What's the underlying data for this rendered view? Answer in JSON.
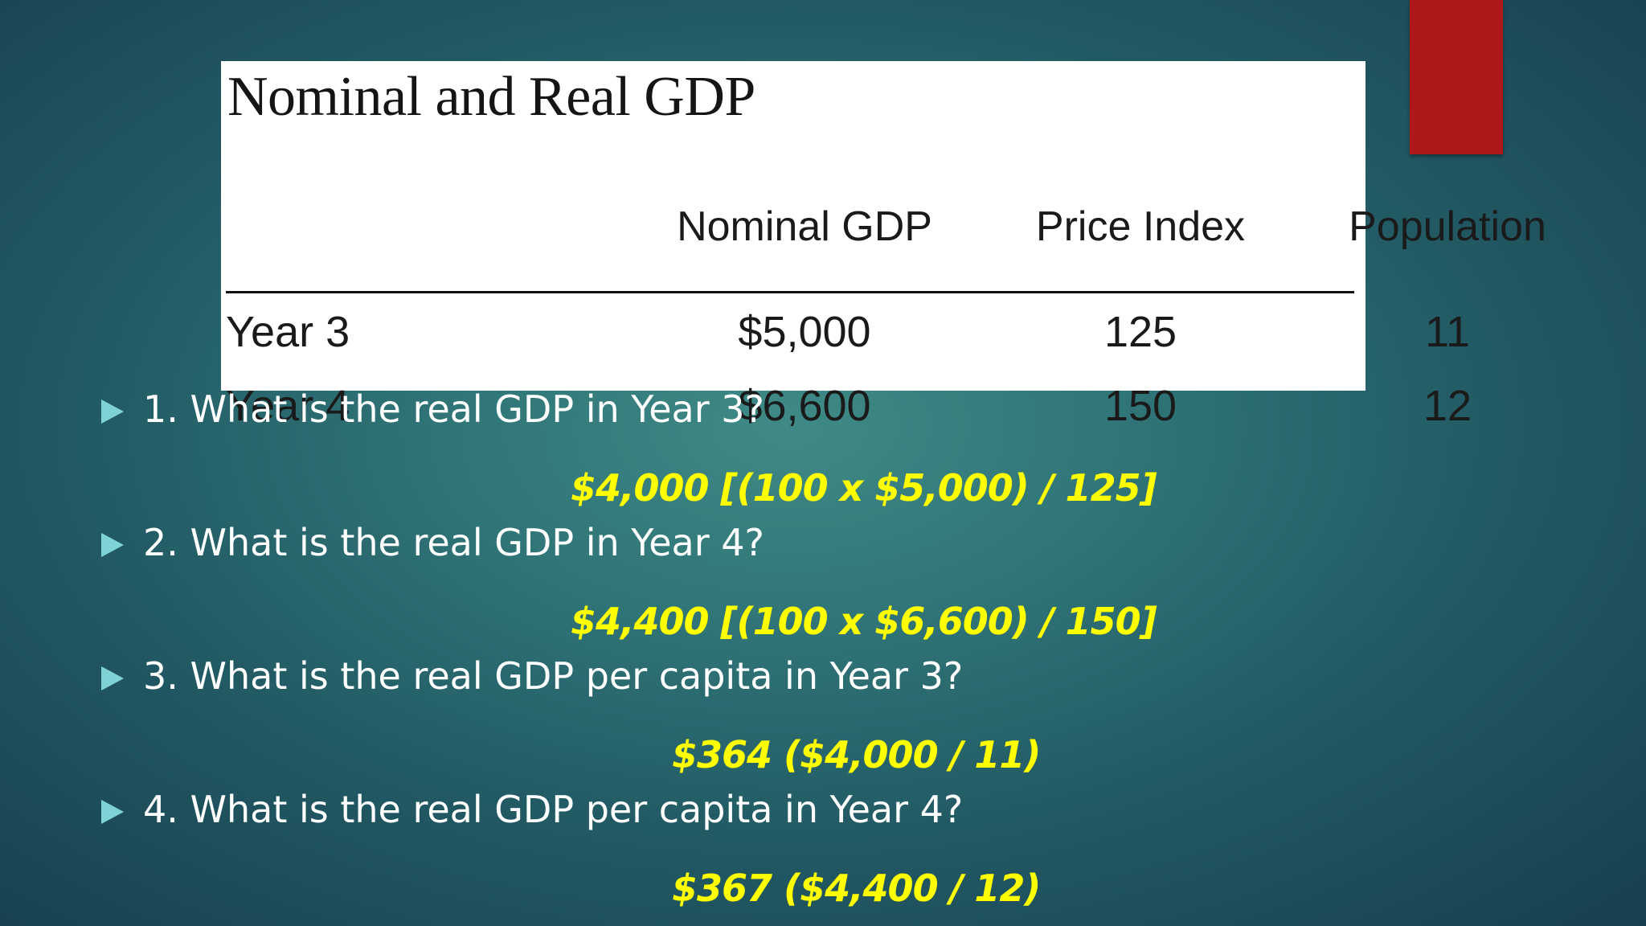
{
  "table": {
    "title": "Nominal and Real GDP",
    "columns": [
      "Nominal GDP",
      "Price Index",
      "Population"
    ],
    "rows": [
      {
        "label": "Year 3",
        "nominal_gdp": "$5,000",
        "price_index": "125",
        "population": "11"
      },
      {
        "label": "Year 4",
        "nominal_gdp": "$6,600",
        "price_index": "150",
        "population": "12"
      }
    ]
  },
  "questions": [
    {
      "question": "1. What is the real GDP in Year 3?",
      "answer": "$4,000 [(100 x $5,000) / 125]"
    },
    {
      "question": "2. What is the real GDP in Year 4?",
      "answer": "$4,400 [(100 x $6,600) / 150]"
    },
    {
      "question": "3. What is the real GDP per capita in Year 3?",
      "answer": "$364 ($4,000 / 11)"
    },
    {
      "question": "4. What is the real GDP per capita in Year 4?",
      "answer": "$367 ($4,400 / 12)"
    }
  ],
  "colors": {
    "background": "#2f7376",
    "accent_red": "#ae1818",
    "answer_yellow": "#ffff00",
    "bullet": "#7fd3d7",
    "question_text": "#ffffff"
  },
  "icons": {
    "bullet": "triangle-right-icon"
  }
}
